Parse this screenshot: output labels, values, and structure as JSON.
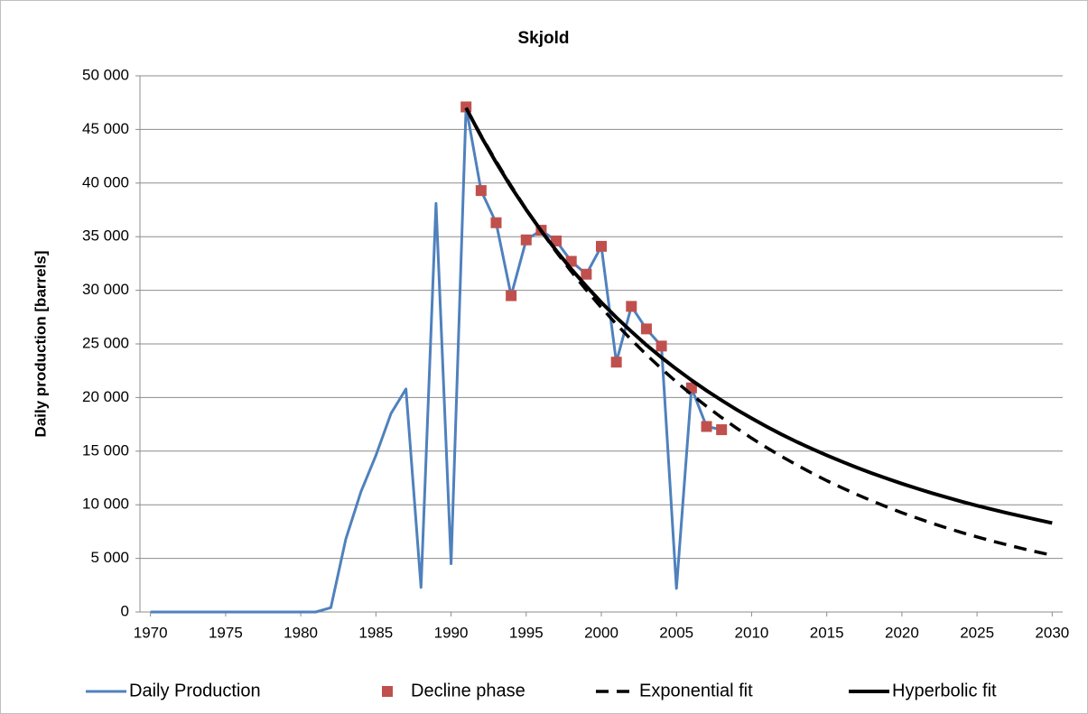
{
  "chart_data": {
    "type": "line",
    "title": "Skjold",
    "y_label": "Daily production  [barrels]",
    "xlim": [
      1969.3,
      2030.7
    ],
    "xticks": [
      1970,
      1975,
      1980,
      1985,
      1990,
      1995,
      2000,
      2005,
      2010,
      2015,
      2020,
      2025,
      2030
    ],
    "ylim": [
      0,
      50000
    ],
    "yticks": [
      0,
      {
        "value": 5000,
        "label": "5 000"
      },
      {
        "value": 10000,
        "label": "10 000"
      },
      {
        "value": 15000,
        "label": "15 000"
      },
      {
        "value": 20000,
        "label": "20 000"
      },
      {
        "value": 25000,
        "label": "25 000"
      },
      {
        "value": 30000,
        "label": "30 000"
      },
      {
        "value": 35000,
        "label": "35 000"
      },
      {
        "value": 40000,
        "label": "40 000"
      },
      {
        "value": 45000,
        "label": "45 000"
      },
      {
        "value": 50000,
        "label": "50 000"
      }
    ],
    "grid": true,
    "legend": "bottom",
    "series": [
      {
        "name": "Daily Production",
        "color": "#4f81bd",
        "style": "line",
        "x": [
          1970,
          1971,
          1972,
          1973,
          1974,
          1975,
          1976,
          1977,
          1978,
          1979,
          1980,
          1981,
          1982,
          1983,
          1984,
          1985,
          1986,
          1987,
          1988,
          1989,
          1990,
          1991,
          1992,
          1993,
          1994,
          1995,
          1996,
          1997,
          1998,
          1999,
          2000,
          2001,
          2002,
          2003,
          2004,
          2005,
          2006,
          2007,
          2008
        ],
        "values": [
          0,
          0,
          0,
          0,
          0,
          0,
          0,
          0,
          0,
          0,
          0,
          0,
          400,
          6800,
          11200,
          14600,
          18500,
          20800,
          2300,
          38100,
          4500,
          47100,
          39300,
          36300,
          29500,
          34700,
          35600,
          34600,
          32700,
          31500,
          34100,
          23300,
          28500,
          26400,
          24800,
          2200,
          20900,
          17300,
          17000
        ]
      },
      {
        "name": "Decline phase",
        "color": "#c0504d",
        "style": "marker",
        "x": [
          1991,
          1992,
          1993,
          1994,
          1995,
          1996,
          1997,
          1998,
          1999,
          2000,
          2001,
          2002,
          2003,
          2004,
          2006,
          2007,
          2008
        ],
        "values": [
          47100,
          39300,
          36300,
          29500,
          34700,
          35600,
          34600,
          32700,
          31500,
          34100,
          23300,
          28500,
          26400,
          24800,
          20900,
          17300,
          17000
        ]
      },
      {
        "name": "Exponential fit",
        "color": "#000000",
        "style": "dash",
        "x": [
          1991,
          1992,
          1993,
          1994,
          1995,
          1996,
          1997,
          1998,
          1999,
          2000,
          2001,
          2002,
          2003,
          2004,
          2005,
          2006,
          2007,
          2008,
          2009,
          2010,
          2011,
          2012,
          2013,
          2014,
          2015,
          2016,
          2017,
          2018,
          2019,
          2020,
          2021,
          2022,
          2023,
          2024,
          2025,
          2026,
          2027,
          2028,
          2029,
          2030
        ],
        "values": [
          47000,
          44440,
          42020,
          39730,
          37560,
          35520,
          33580,
          31750,
          30020,
          28390,
          26840,
          25380,
          24000,
          22690,
          21450,
          20280,
          19180,
          18130,
          17150,
          16210,
          15330,
          14500,
          13710,
          12960,
          12250,
          11590,
          10960,
          10360,
          9800,
          9260,
          8760,
          8280,
          7830,
          7400,
          7000,
          6620,
          6260,
          5920,
          5600,
          5290
        ]
      },
      {
        "name": "Hyperbolic fit",
        "color": "#000000",
        "style": "line-thick",
        "x": [
          1991,
          1992,
          1993,
          1994,
          1995,
          1996,
          1997,
          1998,
          1999,
          2000,
          2001,
          2002,
          2003,
          2004,
          2005,
          2006,
          2007,
          2008,
          2009,
          2010,
          2011,
          2012,
          2013,
          2014,
          2015,
          2016,
          2017,
          2018,
          2019,
          2020,
          2021,
          2022,
          2023,
          2024,
          2025,
          2026,
          2027,
          2028,
          2029,
          2030
        ],
        "values": [
          47000,
          44360,
          41910,
          39630,
          37520,
          35540,
          33700,
          31980,
          30380,
          28870,
          27470,
          26150,
          24900,
          23740,
          22650,
          21620,
          20650,
          19740,
          18870,
          18060,
          17290,
          16560,
          15870,
          15230,
          14610,
          14030,
          13470,
          12950,
          12450,
          11970,
          11520,
          11090,
          10680,
          10290,
          9920,
          9570,
          9230,
          8910,
          8600,
          8300
        ]
      }
    ]
  }
}
